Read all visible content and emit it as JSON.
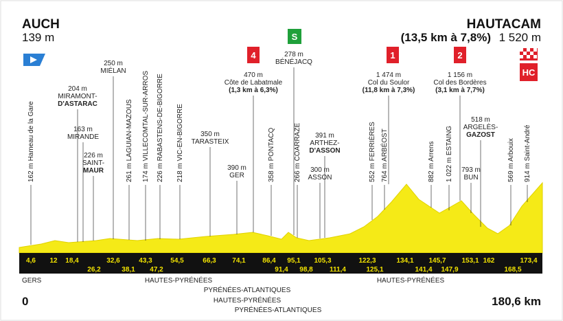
{
  "start": {
    "name": "AUCH",
    "altitude": "139 m",
    "km": "0"
  },
  "finish": {
    "name": "HAUTACAM",
    "climb": "(13,5 km à 7,8%)",
    "altitude": "1 520 m",
    "km": "180,6 km"
  },
  "badges": {
    "cat4": "4",
    "sprint": "S",
    "cat1": "1",
    "cat2": "2",
    "hc": "HC"
  },
  "vertical_waypoints": [
    "162 m Hameau de la Gare",
    "261 m LAGUIAN-MAZOUS",
    "174 m VILLECOMTAL-SUR-ARROS",
    "226 m RABASTENS-DE-BIGORRE",
    "218 m VIC-EN-BIGORRE",
    "358 m PONTACQ",
    "266 m COARRAZE",
    "552 m FERRIÈRES",
    "764 m ARBÉOST",
    "882 m Arrens",
    "1 022 m ESTAING",
    "569 m Arbouix",
    "914 m Saint-André"
  ],
  "waypoints": [
    {
      "lines": [
        "204 m",
        "MIRAMONT-",
        "D'ASTARAC"
      ]
    },
    {
      "lines": [
        "163 m",
        "MIRANDE"
      ]
    },
    {
      "lines": [
        "226 m",
        "SAINT-",
        "MAUR"
      ]
    },
    {
      "lines": [
        "250 m",
        "MIÉLAN"
      ]
    },
    {
      "lines": [
        "350 m",
        "TARASTEIX"
      ]
    },
    {
      "lines": [
        "390 m",
        "GER"
      ]
    },
    {
      "lines": [
        "470 m",
        "Côte de Labatmale",
        "(1,3 km à 6,3%)"
      ]
    },
    {
      "lines": [
        "278 m",
        "BÉNÉJACQ"
      ]
    },
    {
      "lines": [
        "391 m",
        "ARTHEZ-",
        "D'ASSON"
      ]
    },
    {
      "lines": [
        "300 m",
        "ASSON"
      ]
    },
    {
      "lines": [
        "1 474 m",
        "Col du Soulor",
        "(11,8 km à 7,3%)"
      ]
    },
    {
      "lines": [
        "1 156 m",
        "Col des Bordères",
        "(3,1 km à 7,7%)"
      ]
    },
    {
      "lines": [
        "518 m",
        "ARGELÈS-",
        "GAZOST"
      ]
    },
    {
      "lines": [
        "793 m",
        "BUN"
      ]
    }
  ],
  "km_top": [
    "4,6",
    "12",
    "18,4",
    "32,6",
    "43,3",
    "54,5",
    "66,3",
    "74,1",
    "86,4",
    "95,1",
    "105,3",
    "122,3",
    "134,1",
    "145,7",
    "153,1",
    "162",
    "173,4"
  ],
  "km_bottom": [
    "26,2",
    "38,1",
    "47,2",
    "91,4",
    "98,8",
    "111,4",
    "125,1",
    "141,4",
    "147,9",
    "168,5"
  ],
  "regions": [
    "GERS",
    "HAUTES-PYRÉNÉES",
    "PYRÉNÉES-ATLANTIQUES",
    "HAUTES-PYRÉNÉES",
    "PYRÉNÉES-ATLANTIQUES",
    "HAUTES-PYRÉNÉES"
  ]
}
